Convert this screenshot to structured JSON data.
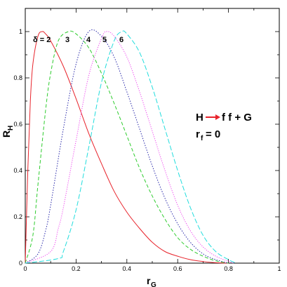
{
  "chart_data": {
    "type": "line",
    "xlabel": "r",
    "xlabel_sub": "G",
    "ylabel": "R",
    "ylabel_sub": "H",
    "xlim": [
      0,
      1
    ],
    "ylim": [
      0,
      1.1
    ],
    "x_ticks": [
      "0",
      "0.2",
      "0.4",
      "0.6",
      "0.8",
      "1"
    ],
    "y_ticks": [
      "0",
      "0.2",
      "0.4",
      "0.6",
      "0.8",
      "1"
    ],
    "grid": false,
    "legend": "none",
    "curve_labels": [
      {
        "text": "δ = 2",
        "series": "2"
      },
      {
        "text": "3",
        "series": "3"
      },
      {
        "text": "4",
        "series": "4"
      },
      {
        "text": "5",
        "series": "5"
      },
      {
        "text": "6",
        "series": "6"
      }
    ],
    "annotation": {
      "process_left": "H",
      "process_right": "f f + G",
      "condition_main": "r",
      "condition_sub": "f",
      "condition_value": "= 0",
      "arrow_color": "#e8242c"
    },
    "series": [
      {
        "name": "2",
        "color": "#e8242c",
        "dash": "solid",
        "x": [
          0,
          0.01,
          0.02,
          0.03,
          0.05,
          0.067,
          0.08,
          0.1,
          0.15,
          0.2,
          0.25,
          0.3,
          0.35,
          0.4,
          0.45,
          0.5,
          0.55,
          0.6,
          0.65,
          0.7,
          0.75,
          0.8
        ],
        "y": [
          0,
          0.4,
          0.7,
          0.86,
          0.98,
          1.0,
          0.99,
          0.96,
          0.85,
          0.71,
          0.56,
          0.43,
          0.31,
          0.22,
          0.15,
          0.09,
          0.05,
          0.03,
          0.015,
          0.007,
          0.002,
          0.0
        ]
      },
      {
        "name": "3",
        "color": "#2ecc2e",
        "dash": "dashed",
        "x": [
          0,
          0.03,
          0.05,
          0.08,
          0.1,
          0.13,
          0.17,
          0.2,
          0.25,
          0.3,
          0.35,
          0.4,
          0.45,
          0.5,
          0.55,
          0.6,
          0.65,
          0.7,
          0.75,
          0.8
        ],
        "y": [
          0,
          0.12,
          0.34,
          0.66,
          0.82,
          0.96,
          1.0,
          0.99,
          0.93,
          0.82,
          0.69,
          0.55,
          0.41,
          0.29,
          0.19,
          0.11,
          0.06,
          0.03,
          0.01,
          0.0
        ]
      },
      {
        "name": "4",
        "color": "#2a2aaa",
        "dash": "dotted",
        "x": [
          0,
          0.05,
          0.08,
          0.1,
          0.15,
          0.2,
          0.25,
          0.3,
          0.35,
          0.4,
          0.45,
          0.5,
          0.55,
          0.6,
          0.65,
          0.7,
          0.75,
          0.8
        ],
        "y": [
          0,
          0.04,
          0.14,
          0.25,
          0.58,
          0.86,
          1.0,
          0.98,
          0.89,
          0.74,
          0.58,
          0.42,
          0.28,
          0.17,
          0.09,
          0.04,
          0.015,
          0.0
        ]
      },
      {
        "name": "5",
        "color": "#ee44ee",
        "dash": "dotdash",
        "x": [
          0,
          0.1,
          0.13,
          0.15,
          0.2,
          0.25,
          0.3,
          0.32,
          0.35,
          0.4,
          0.45,
          0.5,
          0.55,
          0.6,
          0.65,
          0.7,
          0.75,
          0.8,
          0.82
        ],
        "y": [
          0,
          0.05,
          0.15,
          0.24,
          0.53,
          0.81,
          0.97,
          1.0,
          0.98,
          0.89,
          0.74,
          0.57,
          0.4,
          0.25,
          0.14,
          0.07,
          0.03,
          0.008,
          0.0
        ]
      },
      {
        "name": "6",
        "color": "#22dddd",
        "dash": "longdash",
        "x": [
          0,
          0.13,
          0.15,
          0.2,
          0.25,
          0.3,
          0.35,
          0.38,
          0.4,
          0.45,
          0.5,
          0.55,
          0.6,
          0.65,
          0.7,
          0.75,
          0.8,
          0.83
        ],
        "y": [
          0,
          0.02,
          0.05,
          0.23,
          0.5,
          0.78,
          0.96,
          1.0,
          0.99,
          0.91,
          0.76,
          0.58,
          0.4,
          0.24,
          0.12,
          0.05,
          0.015,
          0.0
        ]
      }
    ]
  }
}
